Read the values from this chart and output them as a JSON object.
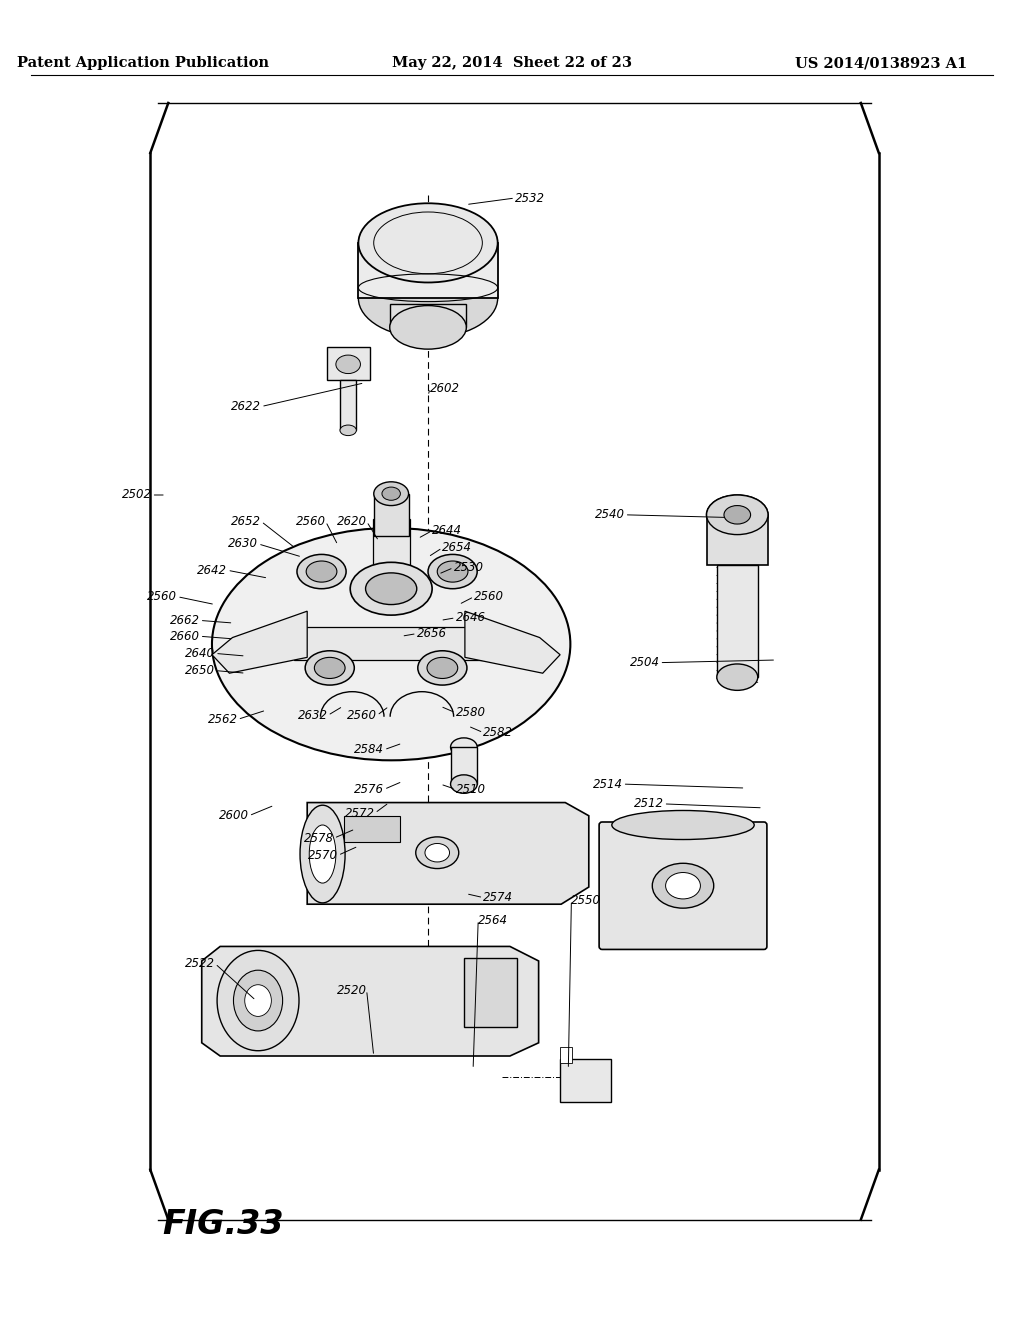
{
  "background_color": "#ffffff",
  "header_left": "Patent Application Publication",
  "header_center": "May 22, 2014  Sheet 22 of 23",
  "header_right": "US 2014/0138923 A1",
  "figure_label": "FIG.33",
  "header_fontsize": 11,
  "figure_label_fontsize": 24,
  "line_color": "#000000",
  "component_face": "#f0f0f0"
}
